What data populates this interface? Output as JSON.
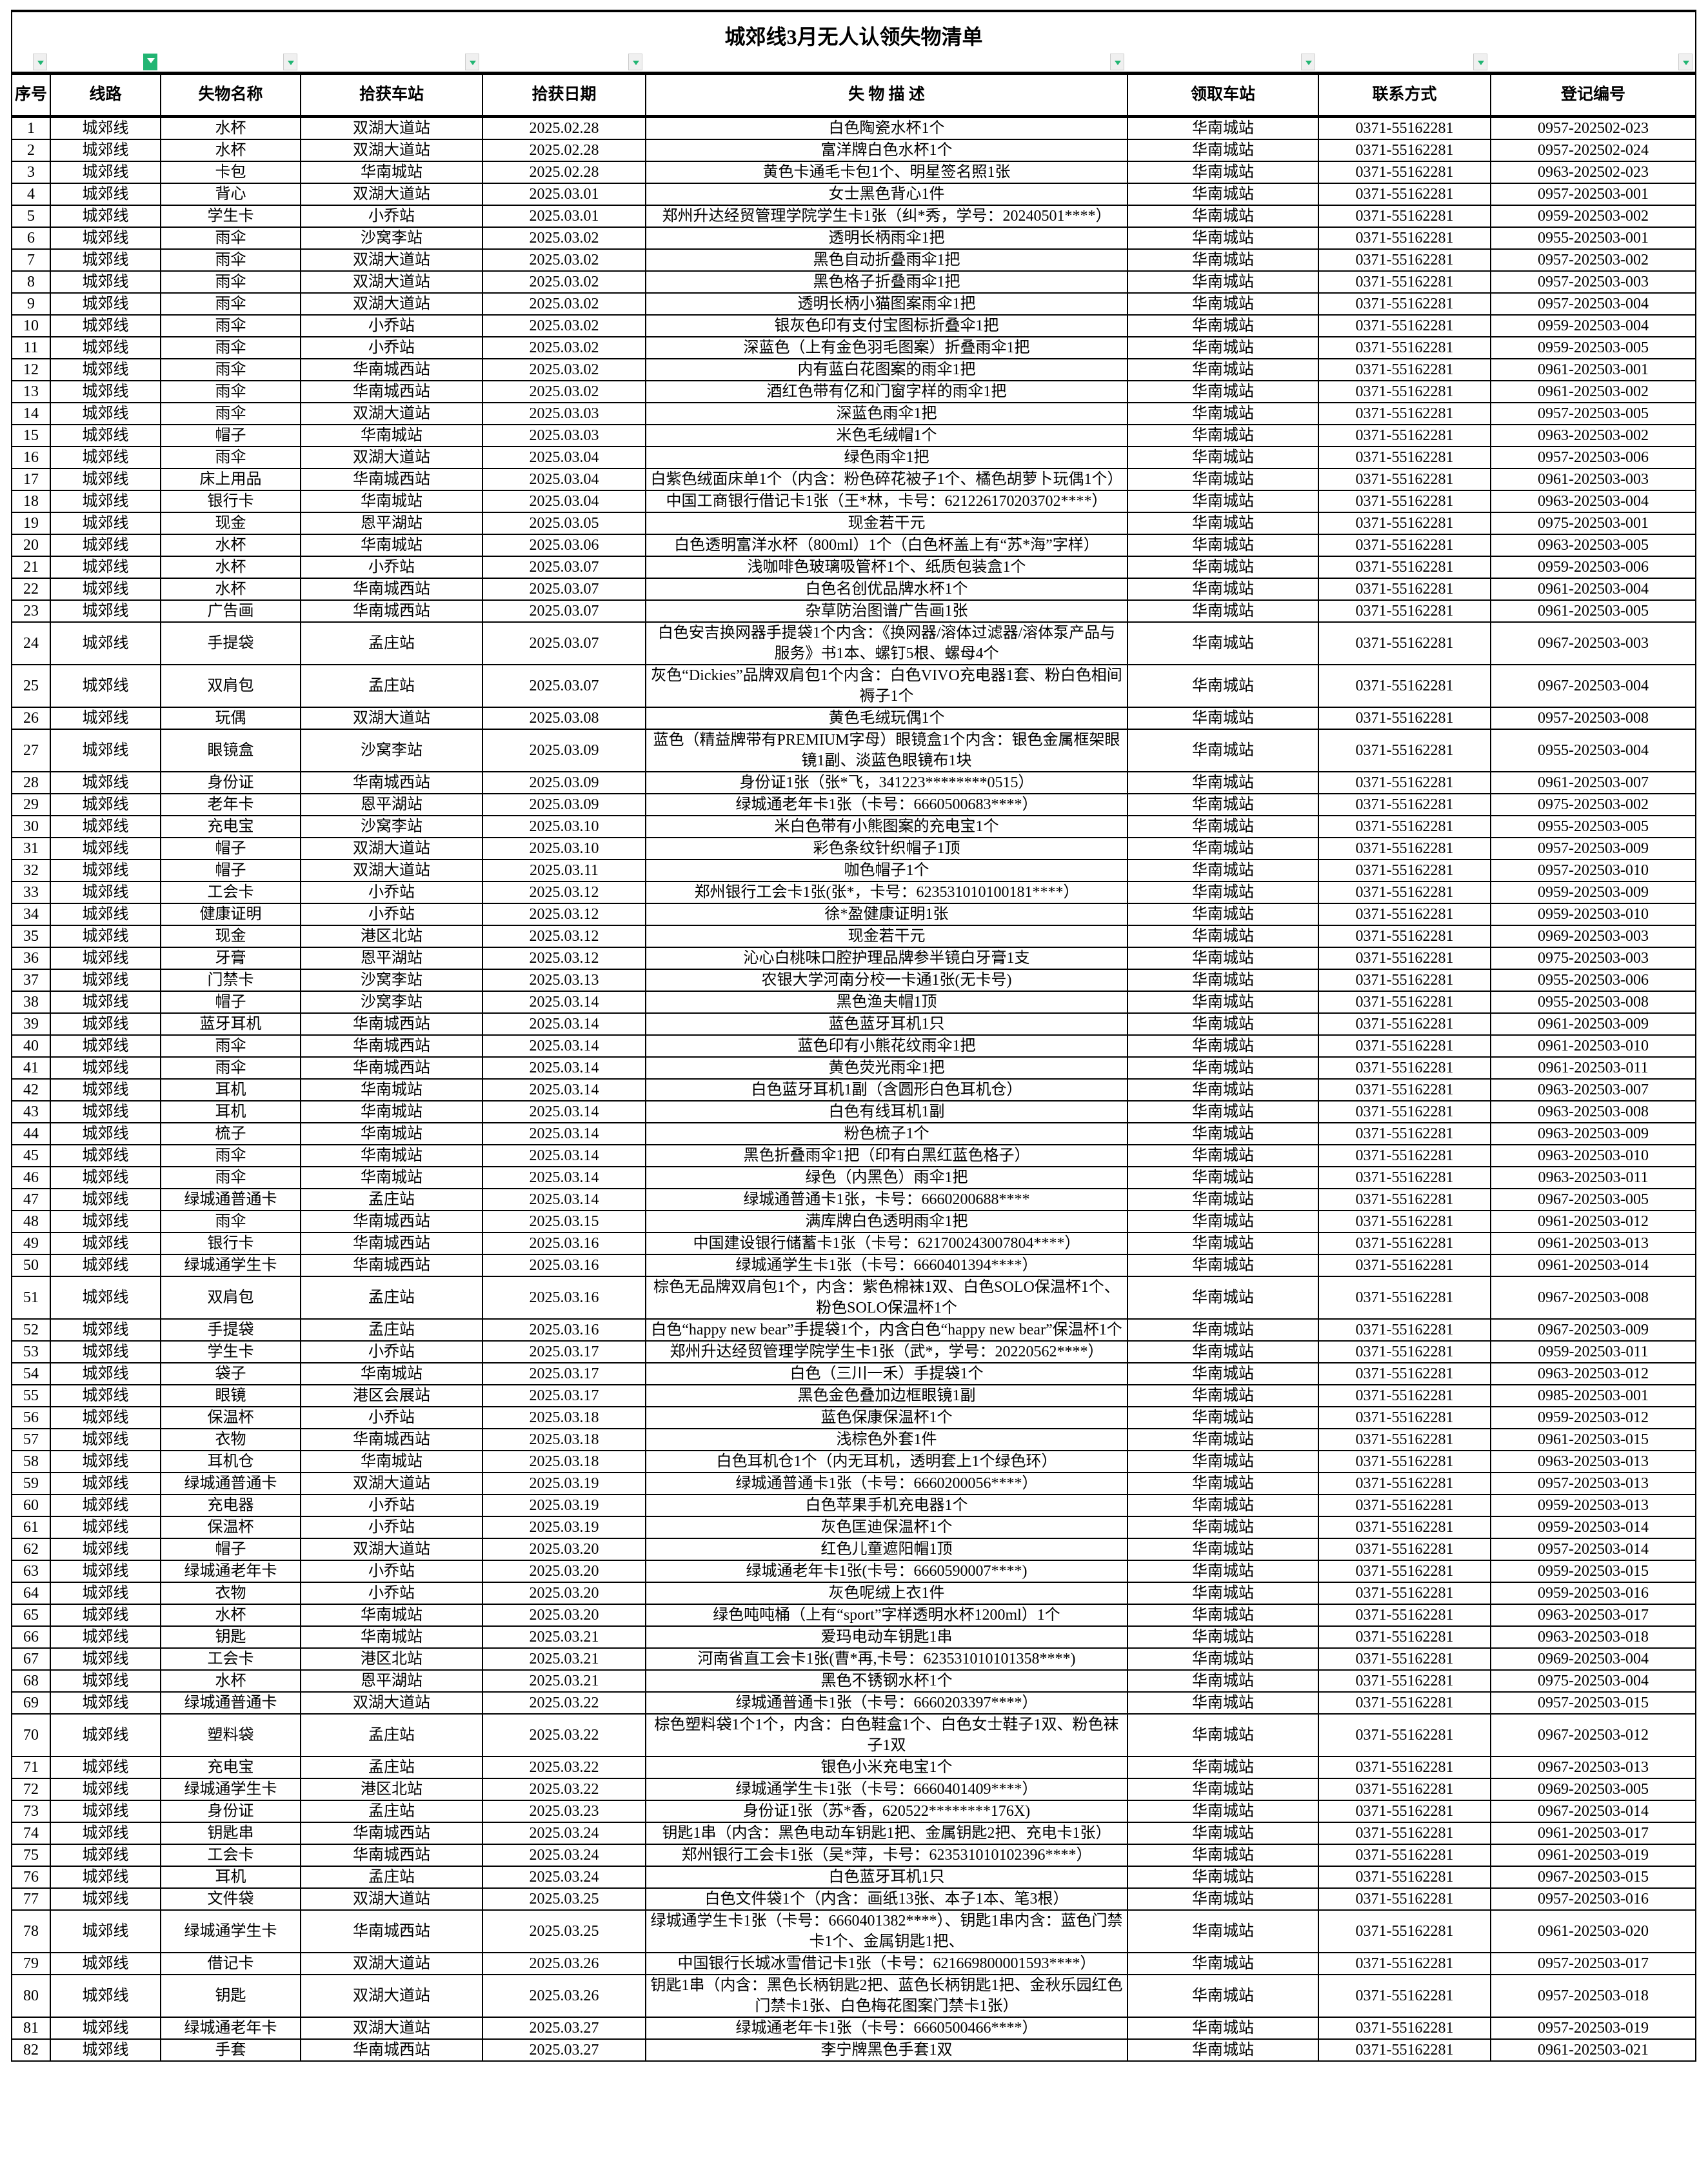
{
  "title": "城郊线3月无人认领失物清单",
  "accent_color": "#22b573",
  "columns": [
    "序号",
    "线路",
    "失物名称",
    "拾获车站",
    "拾获日期",
    "失 物 描 述",
    "领取车站",
    "联系方式",
    "登记编号"
  ],
  "active_filter_column": 1,
  "rows": [
    [
      "1",
      "城郊线",
      "水杯",
      "双湖大道站",
      "2025.02.28",
      "白色陶瓷水杯1个",
      "华南城站",
      "0371-55162281",
      "0957-202502-023"
    ],
    [
      "2",
      "城郊线",
      "水杯",
      "双湖大道站",
      "2025.02.28",
      "富洋牌白色水杯1个",
      "华南城站",
      "0371-55162281",
      "0957-202502-024"
    ],
    [
      "3",
      "城郊线",
      "卡包",
      "华南城站",
      "2025.02.28",
      "黄色卡通毛卡包1个、明星签名照1张",
      "华南城站",
      "0371-55162281",
      "0963-202502-023"
    ],
    [
      "4",
      "城郊线",
      "背心",
      "双湖大道站",
      "2025.03.01",
      "女士黑色背心1件",
      "华南城站",
      "0371-55162281",
      "0957-202503-001"
    ],
    [
      "5",
      "城郊线",
      "学生卡",
      "小乔站",
      "2025.03.01",
      "郑州升达经贸管理学院学生卡1张（纠*秀，学号：20240501****）",
      "华南城站",
      "0371-55162281",
      "0959-202503-002"
    ],
    [
      "6",
      "城郊线",
      "雨伞",
      "沙窝李站",
      "2025.03.02",
      "透明长柄雨伞1把",
      "华南城站",
      "0371-55162281",
      "0955-202503-001"
    ],
    [
      "7",
      "城郊线",
      "雨伞",
      "双湖大道站",
      "2025.03.02",
      "黑色自动折叠雨伞1把",
      "华南城站",
      "0371-55162281",
      "0957-202503-002"
    ],
    [
      "8",
      "城郊线",
      "雨伞",
      "双湖大道站",
      "2025.03.02",
      "黑色格子折叠雨伞1把",
      "华南城站",
      "0371-55162281",
      "0957-202503-003"
    ],
    [
      "9",
      "城郊线",
      "雨伞",
      "双湖大道站",
      "2025.03.02",
      "透明长柄小猫图案雨伞1把",
      "华南城站",
      "0371-55162281",
      "0957-202503-004"
    ],
    [
      "10",
      "城郊线",
      "雨伞",
      "小乔站",
      "2025.03.02",
      "银灰色印有支付宝图标折叠伞1把",
      "华南城站",
      "0371-55162281",
      "0959-202503-004"
    ],
    [
      "11",
      "城郊线",
      "雨伞",
      "小乔站",
      "2025.03.02",
      "深蓝色（上有金色羽毛图案）折叠雨伞1把",
      "华南城站",
      "0371-55162281",
      "0959-202503-005"
    ],
    [
      "12",
      "城郊线",
      "雨伞",
      "华南城西站",
      "2025.03.02",
      "内有蓝白花图案的雨伞1把",
      "华南城站",
      "0371-55162281",
      "0961-202503-001"
    ],
    [
      "13",
      "城郊线",
      "雨伞",
      "华南城西站",
      "2025.03.02",
      "酒红色带有亿和门窗字样的雨伞1把",
      "华南城站",
      "0371-55162281",
      "0961-202503-002"
    ],
    [
      "14",
      "城郊线",
      "雨伞",
      "双湖大道站",
      "2025.03.03",
      "深蓝色雨伞1把",
      "华南城站",
      "0371-55162281",
      "0957-202503-005"
    ],
    [
      "15",
      "城郊线",
      "帽子",
      "华南城站",
      "2025.03.03",
      "米色毛绒帽1个",
      "华南城站",
      "0371-55162281",
      "0963-202503-002"
    ],
    [
      "16",
      "城郊线",
      "雨伞",
      "双湖大道站",
      "2025.03.04",
      "绿色雨伞1把",
      "华南城站",
      "0371-55162281",
      "0957-202503-006"
    ],
    [
      "17",
      "城郊线",
      "床上用品",
      "华南城西站",
      "2025.03.04",
      "白紫色绒面床单1个（内含：粉色碎花被子1个、橘色胡萝卜玩偶1个）",
      "华南城站",
      "0371-55162281",
      "0961-202503-003"
    ],
    [
      "18",
      "城郊线",
      "银行卡",
      "华南城站",
      "2025.03.04",
      "中国工商银行借记卡1张（王*林，卡号：621226170203702****）",
      "华南城站",
      "0371-55162281",
      "0963-202503-004"
    ],
    [
      "19",
      "城郊线",
      "现金",
      "恩平湖站",
      "2025.03.05",
      "现金若干元",
      "华南城站",
      "0371-55162281",
      "0975-202503-001"
    ],
    [
      "20",
      "城郊线",
      "水杯",
      "华南城站",
      "2025.03.06",
      "白色透明富洋水杯（800ml）1个（白色杯盖上有“苏*海”字样）",
      "华南城站",
      "0371-55162281",
      "0963-202503-005"
    ],
    [
      "21",
      "城郊线",
      "水杯",
      "小乔站",
      "2025.03.07",
      "浅咖啡色玻璃吸管杯1个、纸质包装盒1个",
      "华南城站",
      "0371-55162281",
      "0959-202503-006"
    ],
    [
      "22",
      "城郊线",
      "水杯",
      "华南城西站",
      "2025.03.07",
      "白色名创优品牌水杯1个",
      "华南城站",
      "0371-55162281",
      "0961-202503-004"
    ],
    [
      "23",
      "城郊线",
      "广告画",
      "华南城西站",
      "2025.03.07",
      "杂草防治图谱广告画1张",
      "华南城站",
      "0371-55162281",
      "0961-202503-005"
    ],
    [
      "24",
      "城郊线",
      "手提袋",
      "孟庄站",
      "2025.03.07",
      "白色安吉换网器手提袋1个内含：《换网器/溶体过滤器/溶体泵产品与服务》书1本、螺钉5根、螺母4个",
      "华南城站",
      "0371-55162281",
      "0967-202503-003"
    ],
    [
      "25",
      "城郊线",
      "双肩包",
      "孟庄站",
      "2025.03.07",
      "灰色“Dickies”品牌双肩包1个内含：白色VIVO充电器1套、粉白色相间褥子1个",
      "华南城站",
      "0371-55162281",
      "0967-202503-004"
    ],
    [
      "26",
      "城郊线",
      "玩偶",
      "双湖大道站",
      "2025.03.08",
      "黄色毛绒玩偶1个",
      "华南城站",
      "0371-55162281",
      "0957-202503-008"
    ],
    [
      "27",
      "城郊线",
      "眼镜盒",
      "沙窝李站",
      "2025.03.09",
      "蓝色（精益牌带有PREMIUM字母）眼镜盒1个内含：银色金属框架眼镜1副、淡蓝色眼镜布1块",
      "华南城站",
      "0371-55162281",
      "0955-202503-004"
    ],
    [
      "28",
      "城郊线",
      "身份证",
      "华南城西站",
      "2025.03.09",
      "身份证1张（张*飞，341223********0515）",
      "华南城站",
      "0371-55162281",
      "0961-202503-007"
    ],
    [
      "29",
      "城郊线",
      "老年卡",
      "恩平湖站",
      "2025.03.09",
      "绿城通老年卡1张（卡号：6660500683****）",
      "华南城站",
      "0371-55162281",
      "0975-202503-002"
    ],
    [
      "30",
      "城郊线",
      "充电宝",
      "沙窝李站",
      "2025.03.10",
      "米白色带有小熊图案的充电宝1个",
      "华南城站",
      "0371-55162281",
      "0955-202503-005"
    ],
    [
      "31",
      "城郊线",
      "帽子",
      "双湖大道站",
      "2025.03.10",
      "彩色条纹针织帽子1顶",
      "华南城站",
      "0371-55162281",
      "0957-202503-009"
    ],
    [
      "32",
      "城郊线",
      "帽子",
      "双湖大道站",
      "2025.03.11",
      "咖色帽子1个",
      "华南城站",
      "0371-55162281",
      "0957-202503-010"
    ],
    [
      "33",
      "城郊线",
      "工会卡",
      "小乔站",
      "2025.03.12",
      "郑州银行工会卡1张(张*，卡号：623531010100181****）",
      "华南城站",
      "0371-55162281",
      "0959-202503-009"
    ],
    [
      "34",
      "城郊线",
      "健康证明",
      "小乔站",
      "2025.03.12",
      "徐*盈健康证明1张",
      "华南城站",
      "0371-55162281",
      "0959-202503-010"
    ],
    [
      "35",
      "城郊线",
      "现金",
      "港区北站",
      "2025.03.12",
      "现金若干元",
      "华南城站",
      "0371-55162281",
      "0969-202503-003"
    ],
    [
      "36",
      "城郊线",
      "牙膏",
      "恩平湖站",
      "2025.03.12",
      "沁心白桃味口腔护理品牌参半镜白牙膏1支",
      "华南城站",
      "0371-55162281",
      "0975-202503-003"
    ],
    [
      "37",
      "城郊线",
      "门禁卡",
      "沙窝李站",
      "2025.03.13",
      "农银大学河南分校一卡通1张(无卡号)",
      "华南城站",
      "0371-55162281",
      "0955-202503-006"
    ],
    [
      "38",
      "城郊线",
      "帽子",
      "沙窝李站",
      "2025.03.14",
      "黑色渔夫帽1顶",
      "华南城站",
      "0371-55162281",
      "0955-202503-008"
    ],
    [
      "39",
      "城郊线",
      "蓝牙耳机",
      "华南城西站",
      "2025.03.14",
      "蓝色蓝牙耳机1只",
      "华南城站",
      "0371-55162281",
      "0961-202503-009"
    ],
    [
      "40",
      "城郊线",
      "雨伞",
      "华南城西站",
      "2025.03.14",
      "蓝色印有小熊花纹雨伞1把",
      "华南城站",
      "0371-55162281",
      "0961-202503-010"
    ],
    [
      "41",
      "城郊线",
      "雨伞",
      "华南城西站",
      "2025.03.14",
      "黄色荧光雨伞1把",
      "华南城站",
      "0371-55162281",
      "0961-202503-011"
    ],
    [
      "42",
      "城郊线",
      "耳机",
      "华南城站",
      "2025.03.14",
      "白色蓝牙耳机1副（含圆形白色耳机仓）",
      "华南城站",
      "0371-55162281",
      "0963-202503-007"
    ],
    [
      "43",
      "城郊线",
      "耳机",
      "华南城站",
      "2025.03.14",
      "白色有线耳机1副",
      "华南城站",
      "0371-55162281",
      "0963-202503-008"
    ],
    [
      "44",
      "城郊线",
      "梳子",
      "华南城站",
      "2025.03.14",
      "粉色梳子1个",
      "华南城站",
      "0371-55162281",
      "0963-202503-009"
    ],
    [
      "45",
      "城郊线",
      "雨伞",
      "华南城站",
      "2025.03.14",
      "黑色折叠雨伞1把（印有白黑红蓝色格子）",
      "华南城站",
      "0371-55162281",
      "0963-202503-010"
    ],
    [
      "46",
      "城郊线",
      "雨伞",
      "华南城站",
      "2025.03.14",
      "绿色（内黑色）雨伞1把",
      "华南城站",
      "0371-55162281",
      "0963-202503-011"
    ],
    [
      "47",
      "城郊线",
      "绿城通普通卡",
      "孟庄站",
      "2025.03.14",
      "绿城通普通卡1张，卡号：6660200688****",
      "华南城站",
      "0371-55162281",
      "0967-202503-005"
    ],
    [
      "48",
      "城郊线",
      "雨伞",
      "华南城西站",
      "2025.03.15",
      "满库牌白色透明雨伞1把",
      "华南城站",
      "0371-55162281",
      "0961-202503-012"
    ],
    [
      "49",
      "城郊线",
      "银行卡",
      "华南城西站",
      "2025.03.16",
      "中国建设银行储蓄卡1张（卡号：621700243007804****）",
      "华南城站",
      "0371-55162281",
      "0961-202503-013"
    ],
    [
      "50",
      "城郊线",
      "绿城通学生卡",
      "华南城西站",
      "2025.03.16",
      "绿城通学生卡1张（卡号：6660401394****）",
      "华南城站",
      "0371-55162281",
      "0961-202503-014"
    ],
    [
      "51",
      "城郊线",
      "双肩包",
      "孟庄站",
      "2025.03.16",
      "棕色无品牌双肩包1个，内含：紫色棉袜1双、白色SOLO保温杯1个、粉色SOLO保温杯1个",
      "华南城站",
      "0371-55162281",
      "0967-202503-008"
    ],
    [
      "52",
      "城郊线",
      "手提袋",
      "孟庄站",
      "2025.03.16",
      "白色“happy new bear”手提袋1个，内含白色“happy new bear”保温杯1个",
      "华南城站",
      "0371-55162281",
      "0967-202503-009"
    ],
    [
      "53",
      "城郊线",
      "学生卡",
      "小乔站",
      "2025.03.17",
      "郑州升达经贸管理学院学生卡1张（武*，学号：20220562****）",
      "华南城站",
      "0371-55162281",
      "0959-202503-011"
    ],
    [
      "54",
      "城郊线",
      "袋子",
      "华南城站",
      "2025.03.17",
      "白色（三川一禾）手提袋1个",
      "华南城站",
      "0371-55162281",
      "0963-202503-012"
    ],
    [
      "55",
      "城郊线",
      "眼镜",
      "港区会展站",
      "2025.03.17",
      "黑色金色叠加边框眼镜1副",
      "华南城站",
      "0371-55162281",
      "0985-202503-001"
    ],
    [
      "56",
      "城郊线",
      "保温杯",
      "小乔站",
      "2025.03.18",
      "蓝色保康保温杯1个",
      "华南城站",
      "0371-55162281",
      "0959-202503-012"
    ],
    [
      "57",
      "城郊线",
      "衣物",
      "华南城西站",
      "2025.03.18",
      "浅棕色外套1件",
      "华南城站",
      "0371-55162281",
      "0961-202503-015"
    ],
    [
      "58",
      "城郊线",
      "耳机仓",
      "华南城站",
      "2025.03.18",
      "白色耳机仓1个（内无耳机，透明套上1个绿色环）",
      "华南城站",
      "0371-55162281",
      "0963-202503-013"
    ],
    [
      "59",
      "城郊线",
      "绿城通普通卡",
      "双湖大道站",
      "2025.03.19",
      "绿城通普通卡1张（卡号：6660200056****）",
      "华南城站",
      "0371-55162281",
      "0957-202503-013"
    ],
    [
      "60",
      "城郊线",
      "充电器",
      "小乔站",
      "2025.03.19",
      "白色苹果手机充电器1个",
      "华南城站",
      "0371-55162281",
      "0959-202503-013"
    ],
    [
      "61",
      "城郊线",
      "保温杯",
      "小乔站",
      "2025.03.19",
      "灰色匡迪保温杯1个",
      "华南城站",
      "0371-55162281",
      "0959-202503-014"
    ],
    [
      "62",
      "城郊线",
      "帽子",
      "双湖大道站",
      "2025.03.20",
      "红色儿童遮阳帽1顶",
      "华南城站",
      "0371-55162281",
      "0957-202503-014"
    ],
    [
      "63",
      "城郊线",
      "绿城通老年卡",
      "小乔站",
      "2025.03.20",
      "绿城通老年卡1张(卡号：6660590007****)",
      "华南城站",
      "0371-55162281",
      "0959-202503-015"
    ],
    [
      "64",
      "城郊线",
      "衣物",
      "小乔站",
      "2025.03.20",
      "灰色呢绒上衣1件",
      "华南城站",
      "0371-55162281",
      "0959-202503-016"
    ],
    [
      "65",
      "城郊线",
      "水杯",
      "华南城站",
      "2025.03.20",
      "绿色吨吨桶（上有“sport”字样透明水杯1200ml）1个",
      "华南城站",
      "0371-55162281",
      "0963-202503-017"
    ],
    [
      "66",
      "城郊线",
      "钥匙",
      "华南城站",
      "2025.03.21",
      "爱玛电动车钥匙1串",
      "华南城站",
      "0371-55162281",
      "0963-202503-018"
    ],
    [
      "67",
      "城郊线",
      "工会卡",
      "港区北站",
      "2025.03.21",
      "河南省直工会卡1张(曹*再,卡号：623531010101358****)",
      "华南城站",
      "0371-55162281",
      "0969-202503-004"
    ],
    [
      "68",
      "城郊线",
      "水杯",
      "恩平湖站",
      "2025.03.21",
      "黑色不锈钢水杯1个",
      "华南城站",
      "0371-55162281",
      "0975-202503-004"
    ],
    [
      "69",
      "城郊线",
      "绿城通普通卡",
      "双湖大道站",
      "2025.03.22",
      "绿城通普通卡1张（卡号：6660203397****）",
      "华南城站",
      "0371-55162281",
      "0957-202503-015"
    ],
    [
      "70",
      "城郊线",
      "塑料袋",
      "孟庄站",
      "2025.03.22",
      "棕色塑料袋1个1个，内含：白色鞋盒1个、白色女士鞋子1双、粉色袜子1双",
      "华南城站",
      "0371-55162281",
      "0967-202503-012"
    ],
    [
      "71",
      "城郊线",
      "充电宝",
      "孟庄站",
      "2025.03.22",
      "银色小米充电宝1个",
      "华南城站",
      "0371-55162281",
      "0967-202503-013"
    ],
    [
      "72",
      "城郊线",
      "绿城通学生卡",
      "港区北站",
      "2025.03.22",
      "绿城通学生卡1张（卡号：6660401409****）",
      "华南城站",
      "0371-55162281",
      "0969-202503-005"
    ],
    [
      "73",
      "城郊线",
      "身份证",
      "孟庄站",
      "2025.03.23",
      "身份证1张（苏*香，620522********176X)",
      "华南城站",
      "0371-55162281",
      "0967-202503-014"
    ],
    [
      "74",
      "城郊线",
      "钥匙串",
      "华南城西站",
      "2025.03.24",
      "钥匙1串（内含：黑色电动车钥匙1把、金属钥匙2把、充电卡1张）",
      "华南城站",
      "0371-55162281",
      "0961-202503-017"
    ],
    [
      "75",
      "城郊线",
      "工会卡",
      "华南城西站",
      "2025.03.24",
      "郑州银行工会卡1张（吴*萍，卡号：623531010102396****）",
      "华南城站",
      "0371-55162281",
      "0961-202503-019"
    ],
    [
      "76",
      "城郊线",
      "耳机",
      "孟庄站",
      "2025.03.24",
      "白色蓝牙耳机1只",
      "华南城站",
      "0371-55162281",
      "0967-202503-015"
    ],
    [
      "77",
      "城郊线",
      "文件袋",
      "双湖大道站",
      "2025.03.25",
      "白色文件袋1个（内含：画纸13张、本子1本、笔3根）",
      "华南城站",
      "0371-55162281",
      "0957-202503-016"
    ],
    [
      "78",
      "城郊线",
      "绿城通学生卡",
      "华南城西站",
      "2025.03.25",
      "绿城通学生卡1张（卡号：6660401382****）、钥匙1串内含：蓝色门禁卡1个、金属钥匙1把、",
      "华南城站",
      "0371-55162281",
      "0961-202503-020"
    ],
    [
      "79",
      "城郊线",
      "借记卡",
      "双湖大道站",
      "2025.03.26",
      "中国银行长城冰雪借记卡1张（卡号：621669800001593****）",
      "华南城站",
      "0371-55162281",
      "0957-202503-017"
    ],
    [
      "80",
      "城郊线",
      "钥匙",
      "双湖大道站",
      "2025.03.26",
      "钥匙1串（内含：黑色长柄钥匙2把、蓝色长柄钥匙1把、金秋乐园红色门禁卡1张、白色梅花图案门禁卡1张）",
      "华南城站",
      "0371-55162281",
      "0957-202503-018"
    ],
    [
      "81",
      "城郊线",
      "绿城通老年卡",
      "双湖大道站",
      "2025.03.27",
      "绿城通老年卡1张（卡号：6660500466****）",
      "华南城站",
      "0371-55162281",
      "0957-202503-019"
    ],
    [
      "82",
      "城郊线",
      "手套",
      "华南城西站",
      "2025.03.27",
      "李宁牌黑色手套1双",
      "华南城站",
      "0371-55162281",
      "0961-202503-021"
    ]
  ]
}
